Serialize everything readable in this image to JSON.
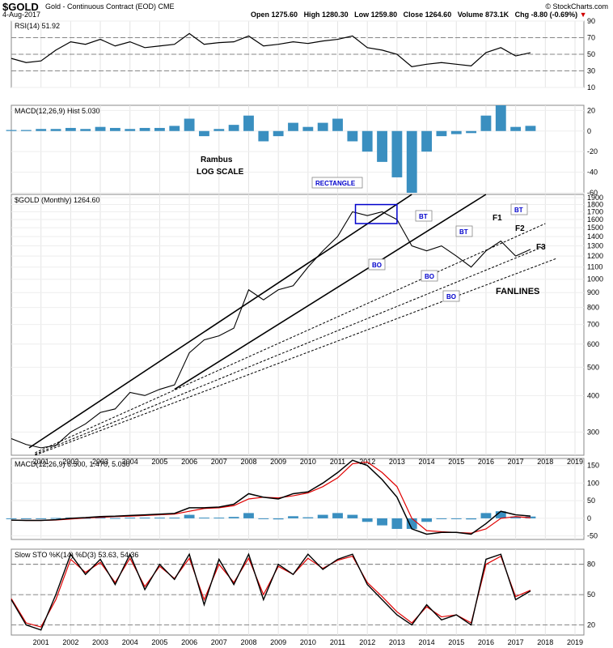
{
  "header": {
    "symbol": "$GOLD",
    "description": "Gold - Continuous Contract (EOD)  CME",
    "date": "4-Aug-2017",
    "open": "Open 1275.60",
    "high": "High 1280.30",
    "low": "Low 1259.80",
    "close": "Close 1264.60",
    "volume": "Volume 873.1K",
    "chg": "Chg -8.80 (-0.69%)",
    "chg_arrow": "▼",
    "credit": "© StockCharts.com"
  },
  "colors": {
    "price": "#000000",
    "macd_signal": "#e00000",
    "histogram": "#3a8fc0",
    "rsi_overbought_fill": "#5a8a5a",
    "annotation_blue": "#0000cc",
    "stoch_d": "#e00000"
  },
  "chart_data": [
    {
      "type": "line",
      "panel": "rsi",
      "title": "RSI(14) 51.92",
      "y_ticks": [
        "90",
        "70",
        "50",
        "30",
        "10"
      ],
      "ylim": [
        10,
        90
      ],
      "reference_lines": [
        70,
        50,
        30
      ],
      "x": [
        2000.0,
        2000.5,
        2001.0,
        2001.5,
        2002.0,
        2002.5,
        2003.0,
        2003.5,
        2004.0,
        2004.5,
        2005.0,
        2005.5,
        2006.0,
        2006.5,
        2007.0,
        2007.5,
        2008.0,
        2008.5,
        2009.0,
        2009.5,
        2010.0,
        2010.5,
        2011.0,
        2011.5,
        2012.0,
        2012.5,
        2013.0,
        2013.5,
        2014.0,
        2014.5,
        2015.0,
        2015.5,
        2016.0,
        2016.5,
        2017.0,
        2017.5
      ],
      "series": [
        {
          "values": [
            45,
            40,
            42,
            55,
            65,
            62,
            68,
            60,
            65,
            58,
            60,
            62,
            75,
            62,
            64,
            65,
            72,
            60,
            62,
            65,
            63,
            66,
            68,
            72,
            58,
            55,
            50,
            35,
            38,
            40,
            38,
            36,
            52,
            58,
            48,
            51.92
          ]
        }
      ]
    },
    {
      "type": "bar",
      "panel": "macd_hist_upper",
      "title": "MACD(12,26,9) Hist 5.030",
      "y_ticks": [
        "20",
        "0",
        "-20",
        "-40",
        "-60"
      ],
      "ylim": [
        -60,
        25
      ],
      "x": [
        2000.0,
        2000.5,
        2001.0,
        2001.5,
        2002.0,
        2002.5,
        2003.0,
        2003.5,
        2004.0,
        2004.5,
        2005.0,
        2005.5,
        2006.0,
        2006.5,
        2007.0,
        2007.5,
        2008.0,
        2008.5,
        2009.0,
        2009.5,
        2010.0,
        2010.5,
        2011.0,
        2011.5,
        2012.0,
        2012.5,
        2013.0,
        2013.5,
        2014.0,
        2014.5,
        2015.0,
        2015.5,
        2016.0,
        2016.5,
        2017.0,
        2017.5
      ],
      "series": [
        {
          "values": [
            1,
            1,
            2,
            2,
            3,
            2,
            4,
            3,
            2,
            3,
            3,
            5,
            12,
            -5,
            2,
            6,
            15,
            -10,
            -5,
            8,
            4,
            8,
            12,
            -10,
            -20,
            -30,
            -45,
            -60,
            -20,
            -5,
            -3,
            -2,
            15,
            25,
            4,
            5.03
          ]
        }
      ]
    },
    {
      "type": "line",
      "panel": "price",
      "title": "$GOLD (Monthly) 1264.60",
      "scale": "log",
      "annotations": [
        "Rambus",
        "LOG SCALE",
        "RECTANGLE",
        "BT",
        "BO",
        "F1",
        "F2",
        "F3",
        "FANLINES"
      ],
      "y_ticks": [
        "1900",
        "1800",
        "1700",
        "1600",
        "1500",
        "1400",
        "1300",
        "1200",
        "1100",
        "1000",
        "900",
        "800",
        "700",
        "600",
        "500",
        "400",
        "300"
      ],
      "ylim": [
        250,
        1950
      ],
      "x_ticks": [
        "2001",
        "2002",
        "2003",
        "2004",
        "2005",
        "2006",
        "2007",
        "2008",
        "2009",
        "2010",
        "2011",
        "2012",
        "2013",
        "2014",
        "2015",
        "2016",
        "2017",
        "2018",
        "2019"
      ],
      "xlim": [
        2000.0,
        2019.3
      ],
      "x": [
        2000.0,
        2000.5,
        2001.0,
        2001.5,
        2002.0,
        2002.5,
        2003.0,
        2003.5,
        2004.0,
        2004.5,
        2005.0,
        2005.5,
        2006.0,
        2006.5,
        2007.0,
        2007.5,
        2008.0,
        2008.5,
        2009.0,
        2009.5,
        2010.0,
        2010.5,
        2011.0,
        2011.5,
        2012.0,
        2012.5,
        2013.0,
        2013.5,
        2014.0,
        2014.5,
        2015.0,
        2015.5,
        2016.0,
        2016.5,
        2017.0,
        2017.5
      ],
      "series": [
        {
          "values": [
            285,
            272,
            265,
            270,
            300,
            320,
            350,
            360,
            410,
            400,
            420,
            435,
            560,
            620,
            640,
            680,
            920,
            850,
            920,
            950,
            1100,
            1250,
            1400,
            1700,
            1650,
            1700,
            1600,
            1300,
            1250,
            1300,
            1200,
            1100,
            1250,
            1350,
            1200,
            1264.6
          ]
        }
      ]
    },
    {
      "type": "line",
      "panel": "macd",
      "title": "MACD(12,26,9) 6.500, 1.470, 5.030",
      "y_ticks": [
        "150",
        "100",
        "50",
        "0",
        "-50"
      ],
      "ylim": [
        -60,
        170
      ],
      "x": [
        2000.0,
        2000.5,
        2001.0,
        2001.5,
        2002.0,
        2002.5,
        2003.0,
        2003.5,
        2004.0,
        2004.5,
        2005.0,
        2005.5,
        2006.0,
        2006.5,
        2007.0,
        2007.5,
        2008.0,
        2008.5,
        2009.0,
        2009.5,
        2010.0,
        2010.5,
        2011.0,
        2011.5,
        2012.0,
        2012.5,
        2013.0,
        2013.5,
        2014.0,
        2014.5,
        2015.0,
        2015.5,
        2016.0,
        2016.5,
        2017.0,
        2017.5
      ],
      "series": [
        {
          "name": "MACD",
          "values": [
            -5,
            -6,
            -6,
            -4,
            0,
            2,
            5,
            6,
            8,
            10,
            12,
            14,
            30,
            30,
            32,
            40,
            70,
            60,
            55,
            70,
            75,
            100,
            130,
            165,
            150,
            110,
            60,
            -30,
            -45,
            -40,
            -40,
            -45,
            -15,
            20,
            10,
            6.5
          ]
        },
        {
          "name": "Signal",
          "values": [
            -5,
            -6,
            -6,
            -5,
            -2,
            1,
            3,
            5,
            6,
            8,
            10,
            12,
            20,
            28,
            30,
            36,
            55,
            60,
            58,
            64,
            72,
            90,
            115,
            155,
            160,
            130,
            90,
            0,
            -35,
            -38,
            -40,
            -42,
            -30,
            0,
            5,
            1.47
          ]
        },
        {
          "name": "Histogram",
          "values": [
            0,
            0,
            0,
            1,
            2,
            1,
            2,
            1,
            2,
            2,
            2,
            2,
            10,
            2,
            2,
            4,
            15,
            0,
            -3,
            6,
            3,
            10,
            15,
            10,
            -10,
            -20,
            -30,
            -30,
            -10,
            -2,
            0,
            -3,
            15,
            20,
            5,
            5.03
          ]
        }
      ]
    },
    {
      "type": "line",
      "panel": "stochastic",
      "title": "Slow STO %K(14) %D(3) 53.63, 54.36",
      "y_ticks": [
        "80",
        "50",
        "20"
      ],
      "ylim": [
        10,
        95
      ],
      "reference_lines": [
        80,
        50,
        20
      ],
      "x": [
        2000.0,
        2000.5,
        2001.0,
        2001.5,
        2002.0,
        2002.5,
        2003.0,
        2003.5,
        2004.0,
        2004.5,
        2005.0,
        2005.5,
        2006.0,
        2006.5,
        2007.0,
        2007.5,
        2008.0,
        2008.5,
        2009.0,
        2009.5,
        2010.0,
        2010.5,
        2011.0,
        2011.5,
        2012.0,
        2012.5,
        2013.0,
        2013.5,
        2014.0,
        2014.5,
        2015.0,
        2015.5,
        2016.0,
        2016.5,
        2017.0,
        2017.5
      ],
      "series": [
        {
          "name": "%K",
          "values": [
            45,
            20,
            15,
            50,
            90,
            70,
            85,
            60,
            90,
            55,
            80,
            65,
            90,
            40,
            85,
            60,
            90,
            45,
            80,
            70,
            90,
            75,
            85,
            90,
            60,
            45,
            30,
            20,
            40,
            25,
            30,
            20,
            85,
            90,
            45,
            53.63
          ]
        },
        {
          "name": "%D",
          "values": [
            46,
            22,
            18,
            45,
            85,
            72,
            82,
            62,
            86,
            58,
            78,
            66,
            86,
            45,
            80,
            62,
            86,
            50,
            78,
            70,
            86,
            76,
            84,
            88,
            62,
            48,
            33,
            22,
            38,
            28,
            30,
            22,
            80,
            88,
            48,
            54.36
          ]
        }
      ]
    }
  ]
}
